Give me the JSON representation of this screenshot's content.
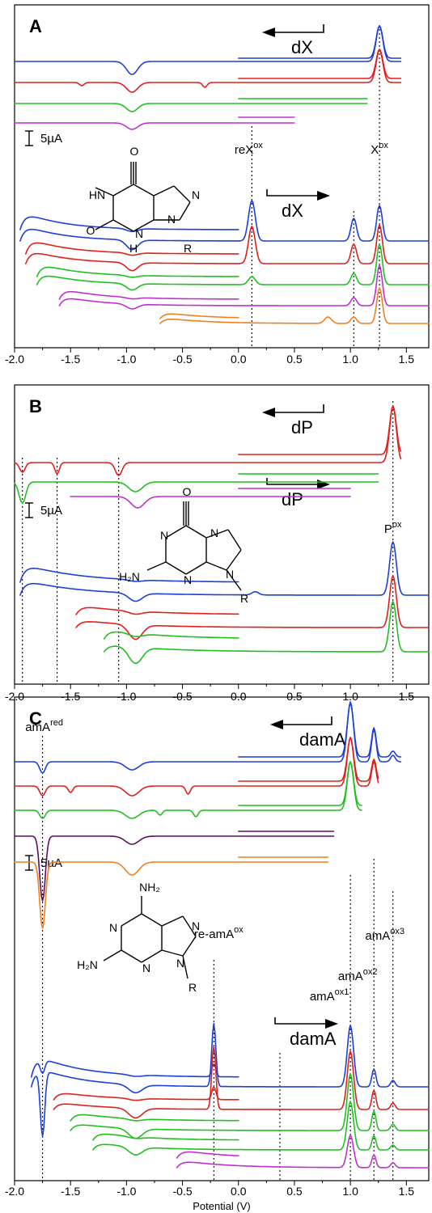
{
  "chart_data": [
    {
      "type": "line",
      "panel": "A",
      "compound_label": "dX",
      "xlim": [
        -2.0,
        1.7
      ],
      "x_ticks": [
        "-2.0",
        "-1.5",
        "-1.0",
        "-0.5",
        "0.0",
        "0.5",
        "1.0",
        "1.5"
      ],
      "scale_bar": "5µA",
      "peaks": [
        {
          "label": "reX",
          "sup": "ox",
          "x": 0.12
        },
        {
          "label": "X",
          "sup": "ox",
          "x": 1.26
        }
      ],
      "guide_lines": [
        0.12,
        1.03,
        1.26
      ],
      "series_colors": [
        "#1f3fd6",
        "#e0201c",
        "#20c020",
        "#c030d0",
        "#f08020"
      ],
      "reverse_scan": {
        "label": "dX",
        "starts": [
          -2.0,
          -2.0,
          -2.0,
          -2.0
        ],
        "ends": [
          1.45,
          1.45,
          1.15,
          0.5
        ],
        "reduction_peak": -0.95,
        "oxidation_peak": 1.26
      },
      "forward_scan": {
        "label": "dX",
        "starts": [
          -1.95,
          -1.9,
          -1.8,
          -1.6,
          -0.7
        ],
        "ends": [
          1.7,
          1.7,
          1.7,
          1.7,
          1.7
        ],
        "peaks": [
          0.12,
          1.03,
          1.26
        ]
      }
    },
    {
      "type": "line",
      "panel": "B",
      "compound_label": "dP",
      "xlim": [
        -2.0,
        1.7
      ],
      "x_ticks": [
        "-2.0",
        "-1.5",
        "-1.0",
        "-0.5",
        "0.0",
        "0.5",
        "1.0",
        "1.5"
      ],
      "scale_bar": "5µA",
      "peaks": [
        {
          "label": "P",
          "sup": "ox",
          "x": 1.38
        }
      ],
      "guide_lines": [
        -1.93,
        -1.62,
        -1.07,
        1.38
      ],
      "series_colors": [
        "#1f3fd6",
        "#e0201c",
        "#20c020",
        "#c030d0"
      ],
      "reverse_scan": {
        "label": "dP",
        "starts": [
          -2.0,
          -2.0,
          -1.5
        ],
        "ends": [
          1.45,
          1.25,
          1.0
        ],
        "reduction_peaks": [
          -1.93,
          -1.62,
          -1.07,
          -0.9
        ],
        "oxidation_peak": 1.38
      },
      "forward_scan": {
        "label": "dP",
        "starts": [
          -1.95,
          -1.45,
          -1.2
        ],
        "ends": [
          1.7,
          1.7,
          1.7
        ],
        "peaks": [
          1.38
        ]
      }
    },
    {
      "type": "line",
      "panel": "C",
      "compound_label": "damA",
      "xlim": [
        -2.0,
        1.7
      ],
      "x_ticks": [
        "-2.0",
        "-1.5",
        "-1.0",
        "-0.5",
        "0.0",
        "0.5",
        "1.0",
        "1.5"
      ],
      "xlabel": "Potential (V)",
      "scale_bar": "5µA",
      "peaks": [
        {
          "label": "amA",
          "sup": "red",
          "x": -1.75
        },
        {
          "label": "re-amA",
          "sup": "ox",
          "x": -0.22
        },
        {
          "label": "amA",
          "sup": "ox1",
          "x": 1.0
        },
        {
          "label": "amA",
          "sup": "ox2",
          "x": 1.21
        },
        {
          "label": "amA",
          "sup": "ox3",
          "x": 1.38
        }
      ],
      "guide_lines": [
        -1.75,
        -0.22,
        0.37,
        1.0,
        1.21,
        1.38
      ],
      "series_colors": [
        "#1f3fd6",
        "#e0201c",
        "#20c020",
        "#5a1060",
        "#f08020",
        "#c030d0"
      ],
      "reverse_scan": {
        "label": "damA",
        "starts": [
          -2.0,
          -2.0,
          -2.0,
          -2.0,
          -2.0
        ],
        "ends": [
          1.45,
          1.25,
          1.1,
          0.85,
          0.8
        ],
        "reduction_peaks": [
          -1.75,
          -0.95
        ],
        "oxidation_peaks": [
          1.0,
          1.21,
          1.38
        ]
      },
      "forward_scan": {
        "label": "damA",
        "starts": [
          -1.85,
          -1.65,
          -1.5,
          -1.3,
          -0.55
        ],
        "ends": [
          1.7,
          1.7,
          1.7,
          1.7,
          1.7
        ],
        "peaks": [
          -0.22,
          1.0,
          1.21,
          1.38
        ]
      }
    }
  ],
  "structures": {
    "A": {
      "atoms": [
        "O",
        "HN",
        "N",
        "O",
        "N",
        "H",
        "N",
        "R"
      ]
    },
    "B": {
      "atoms": [
        "O",
        "N",
        "N",
        "H₂N",
        "N",
        "N",
        "R"
      ]
    },
    "C": {
      "atoms": [
        "NH₂",
        "N",
        "N",
        "H₂N",
        "N",
        "N",
        "R"
      ]
    }
  }
}
